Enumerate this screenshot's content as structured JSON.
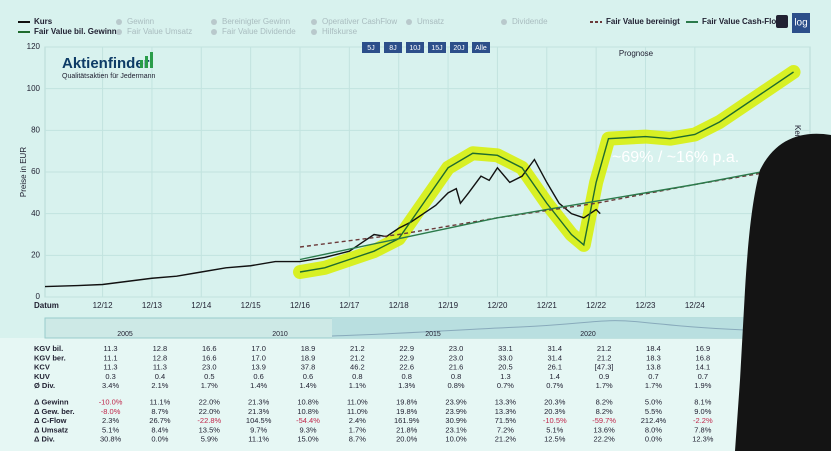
{
  "chart_data": {
    "type": "line",
    "y_label": "Preise in EUR",
    "x_label": "Datum",
    "annotation": "~69% / ~16% p.a.",
    "forecast_label": "Prognose",
    "side_label": "Kennzahl",
    "ylim": [
      0,
      120
    ],
    "yticks": [
      0,
      20,
      40,
      60,
      80,
      100,
      120
    ],
    "grid": true,
    "xlim": [
      "2011-10",
      "2027-04"
    ],
    "xticks": [
      {
        "value": "2012-12",
        "label": "12/12"
      },
      {
        "value": "2013-12",
        "label": "12/13"
      },
      {
        "value": "2014-12",
        "label": "12/14"
      },
      {
        "value": "2015-12",
        "label": "12/15"
      },
      {
        "value": "2016-12",
        "label": "12/16"
      },
      {
        "value": "2017-12",
        "label": "12/17"
      },
      {
        "value": "2018-12",
        "label": "12/18"
      },
      {
        "value": "2019-12",
        "label": "12/19"
      },
      {
        "value": "2020-12",
        "label": "12/20"
      },
      {
        "value": "2021-12",
        "label": "12/21"
      },
      {
        "value": "2022-12",
        "label": "12/22"
      },
      {
        "value": "2023-12",
        "label": "12/23"
      },
      {
        "value": "2024-12",
        "label": "12/24"
      }
    ],
    "series": [
      {
        "name": "Kurs",
        "color": "#111111",
        "dash": false,
        "x": [
          "2011-10",
          "2012-06",
          "2012-12",
          "2013-06",
          "2013-12",
          "2014-06",
          "2014-12",
          "2015-06",
          "2015-12",
          "2016-06",
          "2016-12",
          "2017-06",
          "2017-12",
          "2018-03",
          "2018-06",
          "2018-09",
          "2018-12",
          "2019-03",
          "2019-06",
          "2019-09",
          "2019-12",
          "2020-02",
          "2020-03",
          "2020-05",
          "2020-08",
          "2020-10",
          "2020-12",
          "2021-03",
          "2021-06",
          "2021-09",
          "2021-12",
          "2022-03",
          "2022-06",
          "2022-09",
          "2022-12",
          "2023-01"
        ],
        "values": [
          5,
          5.5,
          6,
          7.5,
          9,
          10,
          12,
          14,
          15,
          17,
          17,
          19,
          22,
          26,
          30,
          29,
          33,
          36,
          40,
          44,
          50,
          52,
          45,
          50,
          58,
          56,
          62,
          55,
          58,
          66,
          55,
          45,
          40,
          38,
          42,
          40
        ]
      },
      {
        "name": "Fair Value bil. Gewinn",
        "color": "#1f6b2e",
        "dash": false,
        "highlight": "#d8f000",
        "x": [
          "2016-12",
          "2017-06",
          "2017-12",
          "2018-06",
          "2018-12",
          "2019-06",
          "2019-12",
          "2020-06",
          "2020-12",
          "2021-06",
          "2021-12",
          "2022-06",
          "2022-09",
          "2022-12",
          "2023-03",
          "2023-12",
          "2024-06",
          "2024-12",
          "2025-06",
          "2026-06",
          "2026-12"
        ],
        "values": [
          12,
          14,
          18,
          22,
          28,
          45,
          62,
          69,
          68,
          62,
          45,
          30,
          25,
          55,
          76,
          77,
          76,
          78,
          84,
          100,
          108
        ]
      },
      {
        "name": "Fair Value bereinigt",
        "color": "#6b3a3a",
        "dash": true,
        "x": [
          "2016-12",
          "2018-12",
          "2020-12",
          "2022-12",
          "2024-12",
          "2026-12"
        ],
        "values": [
          24,
          30,
          38,
          45,
          54,
          62
        ]
      },
      {
        "name": "Fair Value Cash-Flow",
        "color": "#2b7a4b",
        "dash": false,
        "x": [
          "2016-12",
          "2018-12",
          "2020-12",
          "2022-12",
          "2024-12",
          "2026-12"
        ],
        "values": [
          18,
          28,
          38,
          46,
          54,
          63
        ]
      }
    ]
  },
  "inactive_legend": [
    "Gewinn",
    "Bereinigter Gewinn",
    "Operativer CashFlow",
    "Umsatz",
    "Dividende",
    "Fair Value Umsatz",
    "Fair Value Dividende",
    "Hilfskurse"
  ],
  "range_buttons": [
    "5J",
    "8J",
    "10J",
    "15J",
    "20J",
    "Alle"
  ],
  "log_button": "log",
  "logo": {
    "name": "Aktienfinder",
    "tagline": "Qualitätsaktien für Jedermann"
  },
  "navigator": [
    "2005",
    "2010",
    "2015",
    "2020"
  ],
  "table": {
    "rows": [
      [
        "KGV bil.",
        "11.3",
        "12.8",
        "16.6",
        "17.0",
        "18.9",
        "21.2",
        "22.9",
        "23.0",
        "33.1",
        "31.4",
        "21.2",
        "18.4",
        "16.9"
      ],
      [
        "KGV ber.",
        "11.1",
        "12.8",
        "16.6",
        "17.0",
        "18.9",
        "21.2",
        "22.9",
        "23.0",
        "33.0",
        "31.4",
        "21.2",
        "18.3",
        "16.8"
      ],
      [
        "KCV",
        "11.3",
        "11.3",
        "23.0",
        "13.9",
        "37.8",
        "46.2",
        "22.6",
        "21.6",
        "20.5",
        "26.1",
        "[47.3]",
        "13.8",
        "14.1"
      ],
      [
        "KUV",
        "0.3",
        "0.4",
        "0.5",
        "0.6",
        "0.6",
        "0.8",
        "0.8",
        "0.8",
        "1.3",
        "1.4",
        "0.9",
        "0.7",
        "0.7"
      ],
      [
        "Ø Div.",
        "3.4%",
        "2.1%",
        "1.7%",
        "1.4%",
        "1.4%",
        "1.1%",
        "1.3%",
        "0.8%",
        "0.7%",
        "0.7%",
        "1.7%",
        "1.7%",
        "1.9%"
      ],
      [
        "Δ Gewinn",
        "-10.0%",
        "11.1%",
        "22.0%",
        "21.3%",
        "10.8%",
        "11.0%",
        "19.8%",
        "23.9%",
        "13.3%",
        "20.3%",
        "8.2%",
        "5.0%",
        "8.1%"
      ],
      [
        "Δ Gew. ber.",
        "-8.0%",
        "8.7%",
        "22.0%",
        "21.3%",
        "10.8%",
        "11.0%",
        "19.8%",
        "23.9%",
        "13.3%",
        "20.3%",
        "8.2%",
        "5.5%",
        "9.0%"
      ],
      [
        "Δ C-Flow",
        "2.3%",
        "26.7%",
        "-22.8%",
        "104.5%",
        "-54.4%",
        "2.4%",
        "161.9%",
        "30.9%",
        "71.5%",
        "-10.5%",
        "-59.7%",
        "212.4%",
        "-2.2%"
      ],
      [
        "Δ Umsatz",
        "5.1%",
        "8.4%",
        "13.5%",
        "9.7%",
        "9.3%",
        "1.7%",
        "21.8%",
        "23.1%",
        "7.2%",
        "5.1%",
        "13.6%",
        "8.0%",
        "7.8%"
      ],
      [
        "Δ Div.",
        "30.8%",
        "0.0%",
        "5.9%",
        "11.1%",
        "15.0%",
        "8.7%",
        "20.0%",
        "10.0%",
        "21.2%",
        "12.5%",
        "22.2%",
        "0.0%",
        "12.3%"
      ]
    ]
  }
}
